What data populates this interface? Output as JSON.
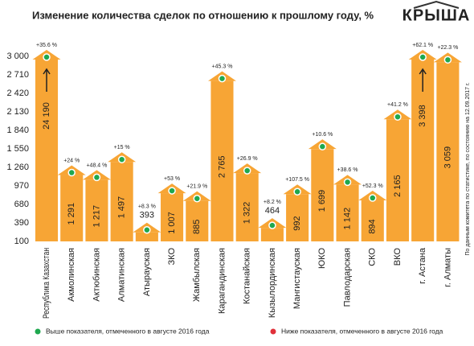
{
  "chart_data": {
    "type": "bar",
    "title": "Изменение количества сделок по отношению к прошлому году, %",
    "logo": "КРЫША",
    "side_note": "По данным комитета по статистике, по состоянию на 12.09.2017 г.",
    "categories": [
      "Республика Казахстан",
      "Акмолинская",
      "Актюбинская",
      "Алматинская",
      "Атырауская",
      "ЗКО",
      "Жамбылская",
      "Карагандинская",
      "Костанайская",
      "Кызылординская",
      "Мангистауская",
      "ЮКО",
      "Павлодарская",
      "СКО",
      "ВКО",
      "г. Астана",
      "г. Алматы"
    ],
    "values": [
      24190,
      1291,
      1217,
      1497,
      393,
      1007,
      885,
      2765,
      1322,
      464,
      992,
      1699,
      1142,
      894,
      2165,
      3398,
      3059
    ],
    "value_labels": [
      "24 190",
      "1 291",
      "1 217",
      "1 497",
      "393",
      "1 007",
      "885",
      "2 765",
      "1 322",
      "464",
      "992",
      "1 699",
      "1 142",
      "894",
      "2 165",
      "3 398",
      "3 059"
    ],
    "change_labels": [
      "+35.6 %",
      "+24 %",
      "+48.4 %",
      "+15 %",
      "+8.3 %",
      "+53 %",
      "+21.9 %",
      "+45.3 %",
      "+26.9 %",
      "+8.2 %",
      "+107.5 %",
      "+10.6 %",
      "+38.6 %",
      "+52.3 %",
      "+41.2 %",
      "+62.1 %",
      "+22.3 %"
    ],
    "marker_colors": [
      "#1fa84f",
      "#1fa84f",
      "#1fa84f",
      "#1fa84f",
      "#1fa84f",
      "#1fa84f",
      "#1fa84f",
      "#1fa84f",
      "#1fa84f",
      "#1fa84f",
      "#1fa84f",
      "#1fa84f",
      "#1fa84f",
      "#1fa84f",
      "#1fa84f",
      "#1fa84f",
      "#1fa84f"
    ],
    "color": "#f7a535",
    "ylim": [
      100,
      3000
    ],
    "yticks": [
      100,
      390,
      680,
      970,
      {
        "value": 1260,
        "label": "1 260"
      },
      {
        "value": 1550,
        "label": "1 550"
      },
      {
        "value": 1840,
        "label": "1 840"
      },
      {
        "value": 2130,
        "label": "2 130"
      },
      {
        "value": 2420,
        "label": "2 420"
      },
      {
        "value": 2710,
        "label": "2 710"
      },
      {
        "value": 3000,
        "label": "3 000"
      }
    ],
    "legend": [
      {
        "name": "Выше показателя, отмеченного в августе 2016 года",
        "color": "#1fa84f"
      },
      {
        "name": "Ниже показателя, отмеченного в августе 2016 года",
        "color": "#e0303a"
      }
    ]
  }
}
